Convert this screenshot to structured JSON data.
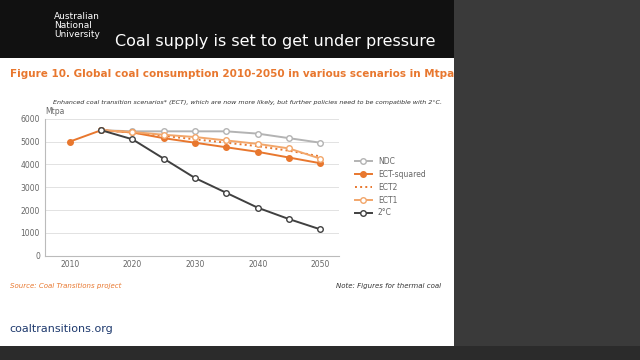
{
  "chart_data": {
    "type": "line",
    "title": "Figure 10. Global coal consumption 2010-2050 in various scenarios in Mtpa",
    "subtitle": "Enhanced coal transition scenarios* (ECT), which are now more likely, but further policies need to be compatible with 2°C.",
    "y_label": "Mtpa",
    "annotations": [
      "Source: Coal Transitions project",
      "Note: Figures for thermal coal"
    ],
    "x": [
      2010,
      2015,
      2020,
      2025,
      2030,
      2035,
      2040,
      2045,
      2050
    ],
    "series": [
      {
        "name": "NDC",
        "color": "#b3b3b3",
        "marker": "open_circle",
        "line_style": "solid",
        "values": [
          null,
          5500,
          5450,
          5450,
          5450,
          5450,
          5350,
          5150,
          4950
        ]
      },
      {
        "name": "ECT-squared",
        "color": "#e8772e",
        "marker": "circle",
        "line_style": "solid",
        "values": [
          5000,
          5500,
          5400,
          5150,
          4950,
          4750,
          4550,
          4300,
          4050
        ]
      },
      {
        "name": "ECT2",
        "color": "#e8772e",
        "marker": "none",
        "line_style": "dotted",
        "values": [
          null,
          5500,
          5400,
          5250,
          5100,
          4950,
          4800,
          4600,
          4350
        ]
      },
      {
        "name": "ECT1",
        "color": "#f2a66a",
        "marker": "open_circle",
        "line_style": "solid",
        "values": [
          null,
          5500,
          5420,
          5300,
          5200,
          5050,
          4900,
          4700,
          4250
        ]
      },
      {
        "name": "2°C",
        "color": "#404040",
        "marker": "open_circle",
        "line_style": "solid",
        "values": [
          null,
          5500,
          5100,
          4250,
          3400,
          2750,
          2100,
          1600,
          1150
        ]
      }
    ],
    "xlim": [
      2006,
      2053
    ],
    "xticks": [
      2010,
      2020,
      2030,
      2040,
      2050
    ],
    "ylim": [
      0,
      6000
    ],
    "yticks": [
      0,
      1000,
      2000,
      3000,
      4000,
      5000,
      6000
    ],
    "grid": true,
    "legend": "center left"
  },
  "slide": {
    "title": "Coal supply is set to get under pressure",
    "logo": "Australian\nNational\nUniversity",
    "footer": "coaltransitions.org"
  }
}
